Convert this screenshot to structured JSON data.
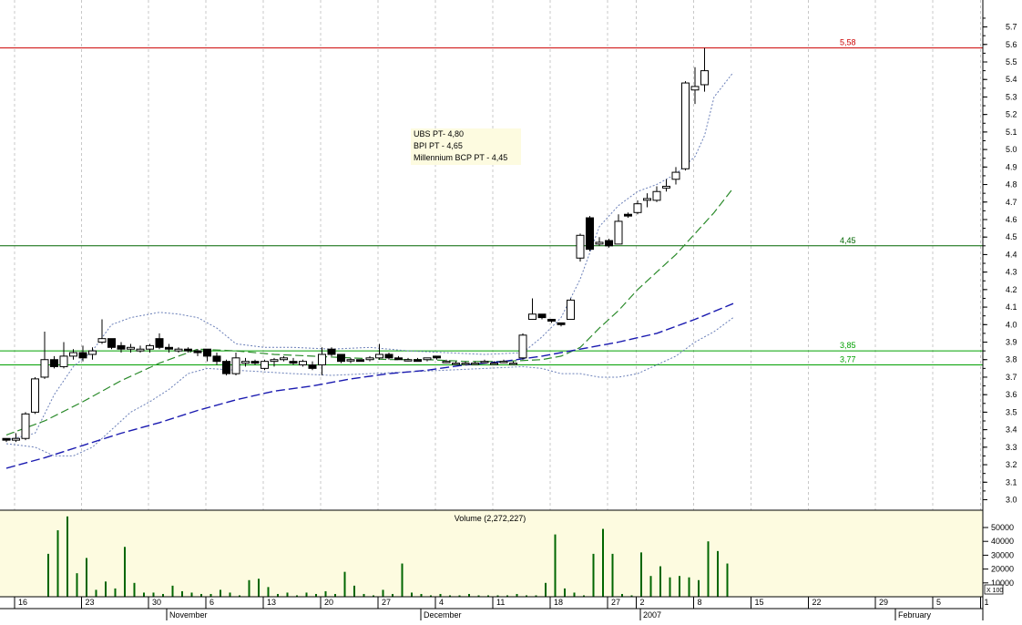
{
  "chart_data": [
    {
      "type": "candlestick",
      "ylim": [
        2.92,
        5.78
      ],
      "yticks": [
        "3.0",
        "3.1",
        "3.2",
        "3.3",
        "3.4",
        "3.5",
        "3.6",
        "3.7",
        "3.8",
        "3.9",
        "4.0",
        "4.1",
        "4.2",
        "4.3",
        "4.4",
        "4.5",
        "4.6",
        "4.7",
        "4.8",
        "4.9",
        "5.0",
        "5.1",
        "5.2",
        "5.3",
        "5.4",
        "5.5",
        "5.6",
        "5.7"
      ],
      "xlim": [
        0,
        89
      ],
      "candles": [
        [
          3.35,
          3.35,
          3.33,
          3.34
        ],
        [
          3.34,
          3.38,
          3.33,
          3.35
        ],
        [
          3.35,
          3.5,
          3.34,
          3.49
        ],
        [
          3.5,
          3.7,
          3.49,
          3.69
        ],
        [
          3.7,
          3.96,
          3.69,
          3.8
        ],
        [
          3.8,
          3.82,
          3.75,
          3.76
        ],
        [
          3.76,
          3.9,
          3.75,
          3.82
        ],
        [
          3.82,
          3.86,
          3.8,
          3.84
        ],
        [
          3.84,
          3.88,
          3.79,
          3.81
        ],
        [
          3.83,
          3.87,
          3.8,
          3.85
        ],
        [
          3.9,
          4.03,
          3.89,
          3.92
        ],
        [
          3.92,
          3.92,
          3.86,
          3.87
        ],
        [
          3.88,
          3.9,
          3.84,
          3.86
        ],
        [
          3.86,
          3.89,
          3.84,
          3.87
        ],
        [
          3.85,
          3.88,
          3.84,
          3.86
        ],
        [
          3.86,
          3.89,
          3.84,
          3.88
        ],
        [
          3.92,
          3.95,
          3.86,
          3.87
        ],
        [
          3.87,
          3.89,
          3.84,
          3.86
        ],
        [
          3.85,
          3.87,
          3.84,
          3.86
        ],
        [
          3.86,
          3.87,
          3.84,
          3.85
        ],
        [
          3.85,
          3.86,
          3.82,
          3.84
        ],
        [
          3.86,
          3.86,
          3.79,
          3.82
        ],
        [
          3.82,
          3.84,
          3.77,
          3.79
        ],
        [
          3.79,
          3.8,
          3.71,
          3.72
        ],
        [
          3.72,
          3.84,
          3.71,
          3.81
        ],
        [
          3.78,
          3.81,
          3.76,
          3.79
        ],
        [
          3.79,
          3.8,
          3.77,
          3.78
        ],
        [
          3.75,
          3.8,
          3.74,
          3.79
        ],
        [
          3.79,
          3.81,
          3.76,
          3.8
        ],
        [
          3.8,
          3.82,
          3.79,
          3.81
        ],
        [
          3.79,
          3.81,
          3.77,
          3.78
        ],
        [
          3.77,
          3.8,
          3.76,
          3.79
        ],
        [
          3.77,
          3.79,
          3.74,
          3.75
        ],
        [
          3.77,
          3.87,
          3.71,
          3.83
        ],
        [
          3.86,
          3.87,
          3.82,
          3.83
        ],
        [
          3.83,
          3.83,
          3.78,
          3.79
        ],
        [
          3.8,
          3.81,
          3.78,
          3.8
        ],
        [
          3.8,
          3.8,
          3.79,
          3.79
        ],
        [
          3.8,
          3.82,
          3.79,
          3.81
        ],
        [
          3.81,
          3.89,
          3.8,
          3.83
        ],
        [
          3.83,
          3.84,
          3.8,
          3.81
        ],
        [
          3.81,
          3.82,
          3.8,
          3.8
        ],
        [
          3.8,
          3.81,
          3.79,
          3.8
        ],
        [
          3.8,
          3.81,
          3.79,
          3.79
        ],
        [
          3.8,
          3.81,
          3.79,
          3.81
        ],
        [
          3.82,
          3.82,
          3.8,
          3.81
        ],
        [
          3.79,
          3.8,
          3.78,
          3.79
        ],
        [
          3.78,
          3.79,
          3.77,
          3.78
        ],
        [
          3.78,
          3.79,
          3.77,
          3.78
        ],
        [
          3.78,
          3.79,
          3.77,
          3.78
        ],
        [
          3.79,
          3.8,
          3.78,
          3.79
        ],
        [
          3.78,
          3.79,
          3.78,
          3.78
        ],
        [
          3.79,
          3.8,
          3.78,
          3.79
        ],
        [
          3.78,
          3.79,
          3.77,
          3.78
        ],
        [
          3.81,
          3.95,
          3.8,
          3.94
        ],
        [
          4.03,
          4.15,
          4.03,
          4.06
        ],
        [
          4.06,
          4.06,
          4.03,
          4.04
        ],
        [
          4.03,
          4.03,
          4.01,
          4.02
        ],
        [
          4.01,
          4.01,
          3.99,
          4.0
        ],
        [
          4.03,
          4.15,
          4.03,
          4.14
        ],
        [
          4.38,
          4.52,
          4.36,
          4.51
        ],
        [
          4.61,
          4.62,
          4.42,
          4.43
        ],
        [
          4.46,
          4.5,
          4.45,
          4.47
        ],
        [
          4.48,
          4.49,
          4.44,
          4.45
        ],
        [
          4.46,
          4.63,
          4.46,
          4.59
        ],
        [
          4.63,
          4.64,
          4.61,
          4.62
        ],
        [
          4.64,
          4.71,
          4.63,
          4.69
        ],
        [
          4.71,
          4.75,
          4.67,
          4.72
        ],
        [
          4.71,
          4.79,
          4.7,
          4.76
        ],
        [
          4.78,
          4.83,
          4.76,
          4.79
        ],
        [
          4.83,
          4.9,
          4.8,
          4.87
        ],
        [
          4.89,
          5.39,
          4.88,
          5.38
        ],
        [
          5.34,
          5.47,
          5.26,
          5.36
        ],
        [
          5.37,
          5.58,
          5.33,
          5.45
        ]
      ],
      "ma_short": [
        [
          0,
          3.37
        ],
        [
          4,
          3.45
        ],
        [
          8,
          3.56
        ],
        [
          12,
          3.68
        ],
        [
          16,
          3.78
        ],
        [
          20,
          3.86
        ],
        [
          24,
          3.85
        ],
        [
          28,
          3.83
        ],
        [
          32,
          3.82
        ],
        [
          36,
          3.81
        ],
        [
          40,
          3.8
        ],
        [
          44,
          3.8
        ],
        [
          48,
          3.79
        ],
        [
          52,
          3.79
        ],
        [
          56,
          3.8
        ],
        [
          58,
          3.82
        ],
        [
          60,
          3.87
        ],
        [
          62,
          3.98
        ],
        [
          64,
          4.08
        ],
        [
          66,
          4.2
        ],
        [
          68,
          4.3
        ],
        [
          70,
          4.4
        ],
        [
          72,
          4.52
        ],
        [
          74,
          4.64
        ],
        [
          76,
          4.78
        ]
      ],
      "ma_long": [
        [
          0,
          3.18
        ],
        [
          4,
          3.24
        ],
        [
          8,
          3.31
        ],
        [
          12,
          3.38
        ],
        [
          16,
          3.44
        ],
        [
          20,
          3.51
        ],
        [
          24,
          3.57
        ],
        [
          28,
          3.62
        ],
        [
          32,
          3.65
        ],
        [
          36,
          3.69
        ],
        [
          40,
          3.72
        ],
        [
          44,
          3.74
        ],
        [
          48,
          3.77
        ],
        [
          52,
          3.79
        ],
        [
          56,
          3.82
        ],
        [
          60,
          3.86
        ],
        [
          64,
          3.9
        ],
        [
          68,
          3.95
        ],
        [
          72,
          4.03
        ],
        [
          76,
          4.12
        ]
      ],
      "band_upper": [
        [
          0,
          3.34
        ],
        [
          3,
          3.38
        ],
        [
          5,
          3.6
        ],
        [
          7,
          3.76
        ],
        [
          9,
          3.85
        ],
        [
          11,
          4.0
        ],
        [
          13,
          4.04
        ],
        [
          16,
          4.07
        ],
        [
          18,
          4.06
        ],
        [
          20,
          4.04
        ],
        [
          22,
          3.98
        ],
        [
          24,
          3.89
        ],
        [
          27,
          3.87
        ],
        [
          30,
          3.87
        ],
        [
          34,
          3.86
        ],
        [
          38,
          3.87
        ],
        [
          42,
          3.85
        ],
        [
          46,
          3.84
        ],
        [
          50,
          3.83
        ],
        [
          54,
          3.84
        ],
        [
          56,
          3.93
        ],
        [
          58,
          4.04
        ],
        [
          60,
          4.26
        ],
        [
          62,
          4.56
        ],
        [
          64,
          4.68
        ],
        [
          66,
          4.76
        ],
        [
          68,
          4.8
        ],
        [
          70,
          4.86
        ],
        [
          72,
          4.96
        ],
        [
          73,
          5.08
        ],
        [
          74,
          5.3
        ],
        [
          76,
          5.44
        ]
      ],
      "band_lower": [
        [
          0,
          3.32
        ],
        [
          3,
          3.3
        ],
        [
          5,
          3.25
        ],
        [
          7,
          3.25
        ],
        [
          9,
          3.3
        ],
        [
          11,
          3.4
        ],
        [
          13,
          3.5
        ],
        [
          15,
          3.56
        ],
        [
          17,
          3.63
        ],
        [
          19,
          3.72
        ],
        [
          21,
          3.75
        ],
        [
          24,
          3.74
        ],
        [
          27,
          3.73
        ],
        [
          30,
          3.72
        ],
        [
          34,
          3.71
        ],
        [
          38,
          3.72
        ],
        [
          42,
          3.73
        ],
        [
          46,
          3.74
        ],
        [
          50,
          3.75
        ],
        [
          54,
          3.76
        ],
        [
          56,
          3.75
        ],
        [
          58,
          3.72
        ],
        [
          60,
          3.72
        ],
        [
          62,
          3.7
        ],
        [
          64,
          3.7
        ],
        [
          66,
          3.72
        ],
        [
          68,
          3.77
        ],
        [
          70,
          3.82
        ],
        [
          72,
          3.9
        ],
        [
          74,
          3.96
        ],
        [
          76,
          4.04
        ]
      ],
      "hlines": [
        {
          "value": 5.58,
          "label": "5,58",
          "color": "#cc0000"
        },
        {
          "value": 4.45,
          "label": "4,45",
          "color": "#006600"
        },
        {
          "value": 3.85,
          "label": "3,85",
          "color": "#00a000"
        },
        {
          "value": 3.77,
          "label": "3,77",
          "color": "#00a000"
        }
      ],
      "annotation": [
        "UBS PT- 4,80",
        "BPI PT - 4,65",
        "Millennium BCP PT - 4,45"
      ]
    },
    {
      "type": "bar",
      "title": "Volume (2,272,227)",
      "ylim": [
        0,
        65000
      ],
      "yticks": [
        "10000",
        "20000",
        "30000",
        "40000",
        "50000"
      ],
      "values": [
        0,
        0,
        31000,
        48000,
        58000,
        17000,
        28000,
        5000,
        11000,
        6000,
        36000,
        10000,
        3000,
        3000,
        2000,
        8000,
        4000,
        3000,
        2000,
        2000,
        5000,
        3000,
        1000,
        12000,
        13000,
        7000,
        2000,
        3000,
        1000,
        3000,
        2000,
        4000,
        2000,
        18000,
        8000,
        2000,
        1000,
        5000,
        2000,
        24000,
        3000,
        2000,
        1000,
        2000,
        1000,
        1000,
        2000,
        1000,
        1000,
        1000,
        1000,
        2000,
        1000,
        1000,
        10000,
        45000,
        6000,
        3000,
        1000,
        31000,
        49000,
        31000,
        2000,
        1000,
        32000,
        15000,
        22000,
        14000,
        15000,
        14000,
        12000,
        40000,
        33000,
        24000
      ]
    }
  ],
  "axis": {
    "day_labels": [
      "16",
      "23",
      "30",
      "6",
      "13",
      "20",
      "27",
      "4",
      "11",
      "18",
      "27",
      "2",
      "8",
      "15",
      "22",
      "29",
      "5",
      "1"
    ],
    "month_labels": [
      "November",
      "December",
      "2007",
      "February"
    ]
  },
  "volume_unit": "X 100",
  "colors": {
    "panel_bg": "#fdfbe0",
    "candle_down": "#000000",
    "ma_short": "#2a8a2a",
    "ma_long": "#1a1ab0",
    "band": "#6a7fb8",
    "volume": "#006600"
  }
}
